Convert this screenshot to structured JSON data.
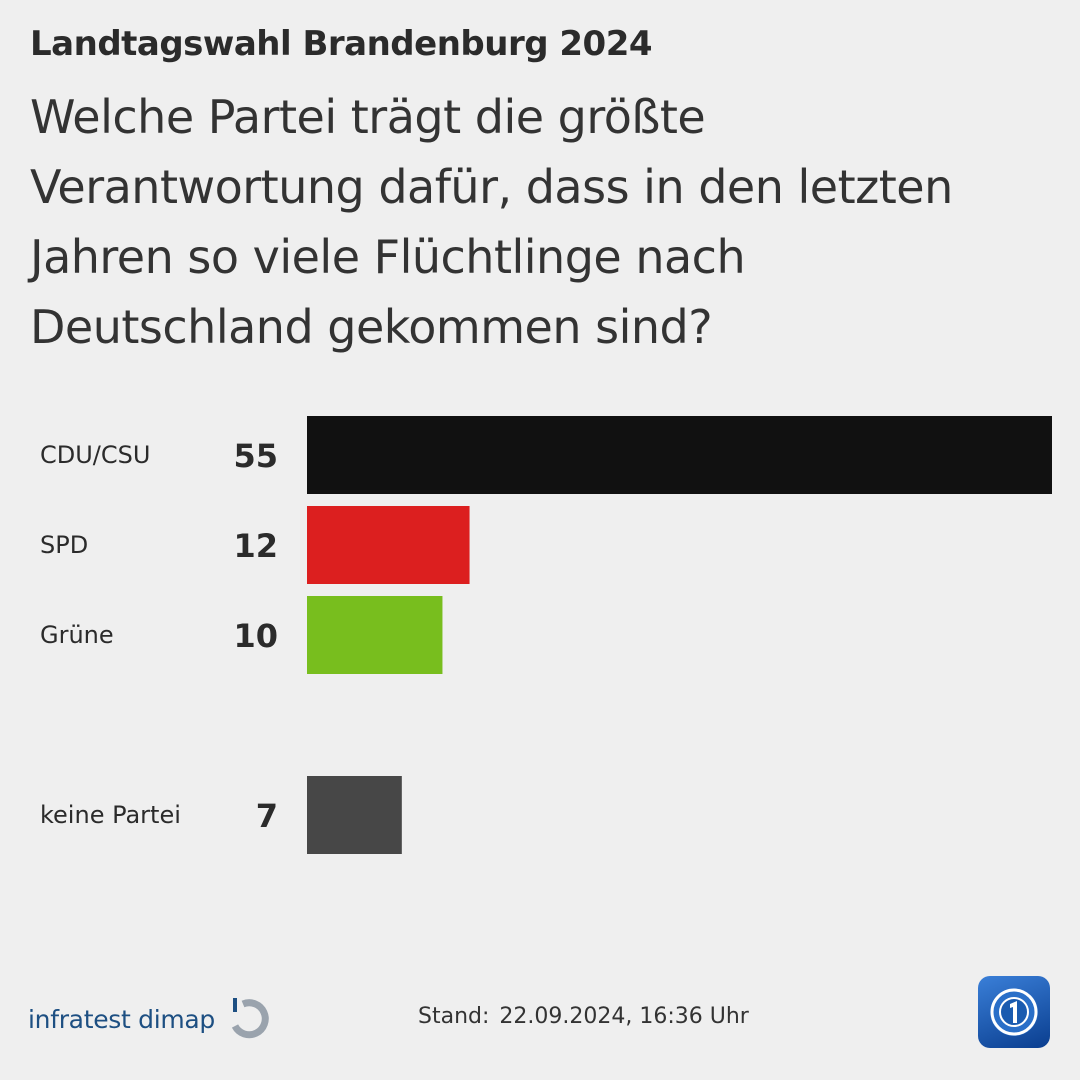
{
  "header": {
    "kicker": "Landtagswahl Brandenburg 2024",
    "question": "Welche Partei trägt die größte Verantwortung dafür, dass in den letzten Jahren so viele Flüchtlinge nach Deutschland gekommen sind?"
  },
  "chart_data": {
    "type": "bar",
    "orientation": "horizontal",
    "title": "",
    "xlabel": "",
    "ylabel": "",
    "categories": [
      "CDU/CSU",
      "SPD",
      "Grüne",
      "keine Partei"
    ],
    "values": [
      55,
      12,
      10,
      7
    ],
    "colors": [
      "#111111",
      "#dc1f1f",
      "#78be1e",
      "#474747"
    ],
    "value_labels": [
      "55",
      "12",
      "10",
      "7"
    ],
    "grid": false,
    "legend": "none"
  },
  "footer": {
    "brand": "infratest dimap",
    "stand_label": "Stand:",
    "stand_value": "22.09.2024, 16:36 Uhr",
    "brand_icon": "infratest-dimap-logo-icon",
    "broadcaster_icon": "tagesschau-logo-icon"
  }
}
